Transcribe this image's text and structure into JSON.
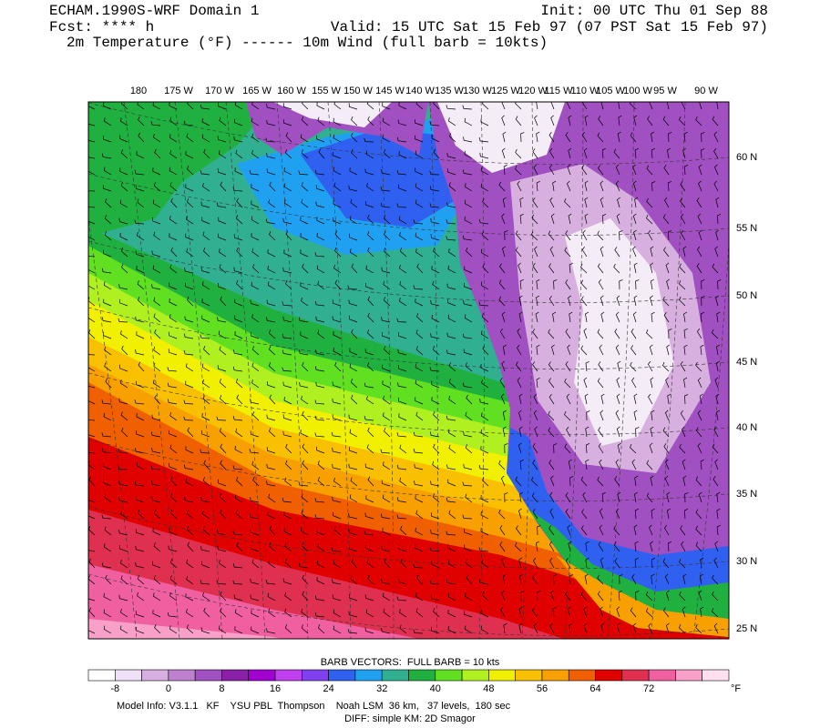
{
  "header": {
    "title": "ECHAM.1990S-WRF Domain 1",
    "init": "Init: 00 UTC Thu 01 Sep 88",
    "fcst": "Fcst: **** h",
    "valid": "Valid: 15 UTC Sat 15 Feb 97 (07 PST Sat 15 Feb 97)",
    "fields": "2m Temperature (°F) ------ 10m Wind (full barb = 10kts)"
  },
  "map": {
    "top_labels": [
      "180",
      "175 W",
      "170 W",
      "165 W",
      "160 W",
      "155 W",
      "150 W",
      "145 W",
      "140 W",
      "135 W",
      "130 W",
      "125 W",
      "120 W",
      "115 W",
      "110 W",
      "105 W",
      "100 W",
      "95 W",
      "90 W"
    ],
    "right_labels": [
      "60 N",
      "55 N",
      "50 N",
      "45 N",
      "40 N",
      "35 N",
      "30 N",
      "25 N"
    ]
  },
  "colorbar": {
    "title": "BARB VECTORS:  FULL BARB = 10 kts",
    "colors": [
      "#ffffff",
      "#f0e0f8",
      "#d8b0e0",
      "#c080d0",
      "#a050c0",
      "#8a20a8",
      "#a000d0",
      "#c040f0",
      "#8040f0",
      "#3060f0",
      "#20a0f0",
      "#30b090",
      "#20b040",
      "#60e020",
      "#b0f020",
      "#f0f000",
      "#f8c000",
      "#f8a000",
      "#f06000",
      "#e00000",
      "#e03050",
      "#f060a0",
      "#f8a0c8",
      "#ffe0f0"
    ],
    "labels": [
      -8,
      0,
      8,
      16,
      24,
      32,
      40,
      48,
      56,
      64,
      72
    ],
    "unit": "°F"
  },
  "footer": {
    "line1": "Model Info: V3.1.1   KF    YSU PBL  Thompson    Noah LSM  36 km,   37 levels,  180 sec",
    "line2": "DIFF: simple KM: 2D Smagor"
  }
}
